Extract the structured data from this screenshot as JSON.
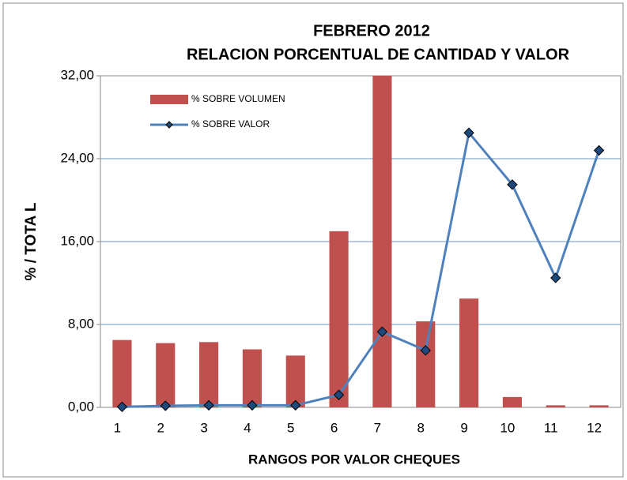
{
  "chart_data": {
    "type": "bar_line",
    "title": "FEBRERO 2012",
    "subtitle": "RELACION PORCENTUAL  DE CANTIDAD  Y VALOR",
    "x_label": "RANGOS POR VALOR CHEQUES",
    "y_label": "%  /    TOTA L",
    "categories": [
      "1",
      "2",
      "3",
      "4",
      "5",
      "6",
      "7",
      "8",
      "9",
      "10",
      "11",
      "12"
    ],
    "series": [
      {
        "name": "% SOBRE VOLUMEN",
        "type": "bar",
        "color": "#c0504d",
        "values": [
          6.5,
          6.2,
          6.3,
          5.6,
          5.0,
          17.0,
          32.0,
          8.3,
          10.5,
          1.0,
          0.2,
          0.2
        ]
      },
      {
        "name": "% SOBRE VALOR",
        "type": "line",
        "color": "#4f81bd",
        "values": [
          0.05,
          0.15,
          0.2,
          0.2,
          0.2,
          1.2,
          7.3,
          5.5,
          26.5,
          21.5,
          12.5,
          24.8
        ]
      }
    ],
    "ylim": [
      0,
      32
    ],
    "yticks": [
      {
        "value": 0,
        "label": "0,00"
      },
      {
        "value": 8,
        "label": "8,00"
      },
      {
        "value": 16,
        "label": "16,00"
      },
      {
        "value": 24,
        "label": "24,00"
      },
      {
        "value": 32,
        "label": "32,00"
      }
    ],
    "grid": true,
    "legend": "top-left"
  }
}
